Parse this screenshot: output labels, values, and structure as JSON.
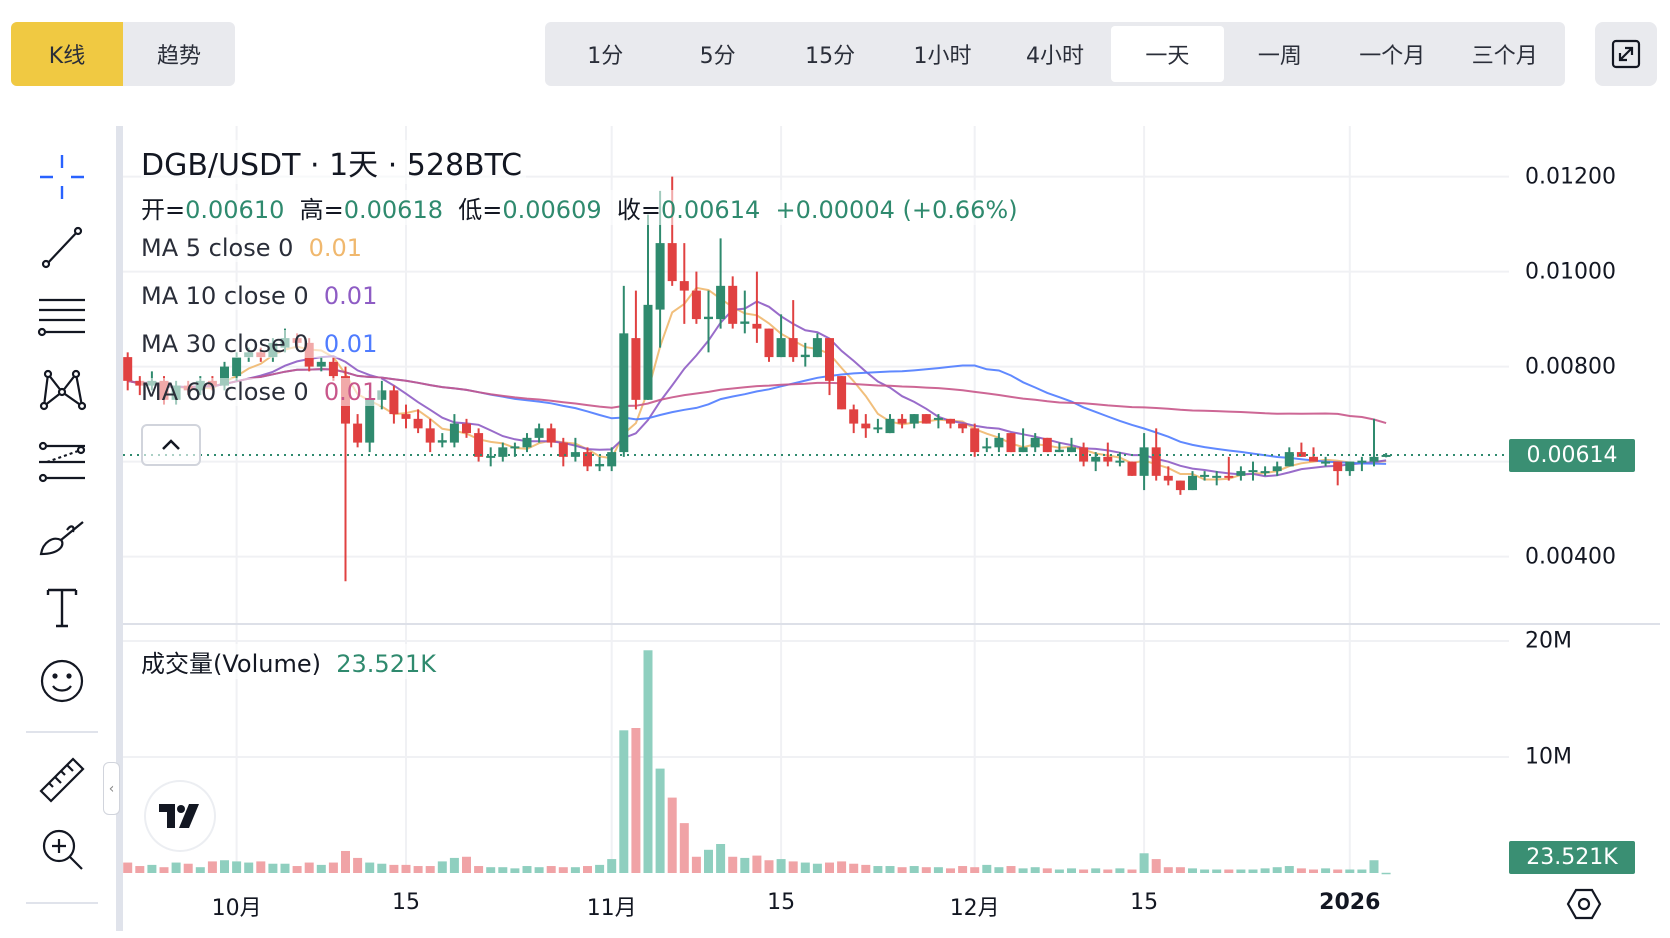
{
  "chart_type_tabs": [
    {
      "label": "K线",
      "active": true
    },
    {
      "label": "趋势",
      "active": false
    }
  ],
  "intervals": [
    {
      "label": "1分",
      "active": false
    },
    {
      "label": "5分",
      "active": false
    },
    {
      "label": "15分",
      "active": false
    },
    {
      "label": "1小时",
      "active": false
    },
    {
      "label": "4小时",
      "active": false
    },
    {
      "label": "一天",
      "active": true
    },
    {
      "label": "一周",
      "active": false
    },
    {
      "label": "一个月",
      "active": false
    },
    {
      "label": "三个月",
      "active": false
    }
  ],
  "toolbar": [
    "crosshair-icon",
    "trend-line-icon",
    "fib-retracement-icon",
    "xabcd-pattern-icon",
    "regression-lines-icon",
    "brush-icon",
    "text-icon",
    "emoji-icon",
    "ruler-icon",
    "zoom-in-icon"
  ],
  "legend": {
    "title": "DGB/USDT · 1天 · 528BTC",
    "open_label": "开=",
    "open": "0.00610",
    "high_label": "高=",
    "high": "0.00618",
    "low_label": "低=",
    "low": "0.00609",
    "close_label": "收=",
    "close": "0.00614",
    "change": "+0.00004 (+0.66%)",
    "ma": [
      {
        "label": "MA 5 close 0",
        "value": "0.01",
        "color": "#f0b86e"
      },
      {
        "label": "MA 10 close 0",
        "value": "0.01",
        "color": "#8e5cc4"
      },
      {
        "label": "MA 30 close 0",
        "value": "0.01",
        "color": "#4f7cff"
      },
      {
        "label": "MA 60 close 0",
        "value": "0.01",
        "color": "#c8568a"
      }
    ],
    "volume_label": "成交量(Volume)",
    "volume_value": "23.521K"
  },
  "colors": {
    "up": "#2f8a6e",
    "down": "#e04141",
    "up_vol": "#8fcfbf",
    "down_vol": "#f0a3a6",
    "accent": "#f0c942",
    "last_price_bg": "#3a8f73"
  },
  "chart_data": {
    "type": "candlestick",
    "symbol": "DGB/USDT",
    "interval": "1天",
    "price_axis": {
      "ticks": [
        "0.01200",
        "0.01000",
        "0.00800",
        "0.00400"
      ],
      "tick_values": [
        0.012,
        0.01,
        0.008,
        0.004
      ],
      "grid_values": [
        0.012,
        0.01,
        0.008,
        0.006,
        0.004
      ],
      "range": [
        0.00335,
        0.01248
      ]
    },
    "volume_axis": {
      "ticks": [
        "20M",
        "10M"
      ],
      "tick_values": [
        20,
        10
      ],
      "unit": "M"
    },
    "last_price": "0.00614",
    "last_price_value": 0.00614,
    "last_volume": "23.521K",
    "x_ticks": [
      {
        "label": "10月",
        "index": 9
      },
      {
        "label": "15",
        "index": 23
      },
      {
        "label": "11月",
        "index": 40
      },
      {
        "label": "15",
        "index": 54
      },
      {
        "label": "12月",
        "index": 70
      },
      {
        "label": "15",
        "index": 84
      },
      {
        "label": "2026",
        "index": 101,
        "bold": true
      }
    ],
    "ma_periods": [
      5,
      10,
      30,
      60
    ],
    "ohlc": [
      [
        0.0082,
        0.0083,
        0.0075,
        0.0077
      ],
      [
        0.0077,
        0.0078,
        0.0074,
        0.0076
      ],
      [
        0.0076,
        0.0079,
        0.0075,
        0.0077
      ],
      [
        0.0077,
        0.0078,
        0.0072,
        0.0073
      ],
      [
        0.0073,
        0.0077,
        0.0072,
        0.0076
      ],
      [
        0.0076,
        0.0077,
        0.0074,
        0.0075
      ],
      [
        0.0075,
        0.0078,
        0.0074,
        0.0077
      ],
      [
        0.0077,
        0.0078,
        0.0075,
        0.0076
      ],
      [
        0.0076,
        0.0081,
        0.0075,
        0.008
      ],
      [
        0.0078,
        0.0083,
        0.0077,
        0.0082
      ],
      [
        0.0082,
        0.0084,
        0.0081,
        0.0083
      ],
      [
        0.0083,
        0.0084,
        0.0081,
        0.0082
      ],
      [
        0.0082,
        0.0086,
        0.0081,
        0.0085
      ],
      [
        0.0084,
        0.0088,
        0.0083,
        0.0086
      ],
      [
        0.0086,
        0.0087,
        0.0084,
        0.0085
      ],
      [
        0.0085,
        0.0086,
        0.0079,
        0.008
      ],
      [
        0.008,
        0.0082,
        0.0079,
        0.0081
      ],
      [
        0.0081,
        0.0082,
        0.0077,
        0.0078
      ],
      [
        0.0078,
        0.008,
        0.00348,
        0.0068
      ],
      [
        0.0068,
        0.007,
        0.0063,
        0.0064
      ],
      [
        0.0064,
        0.0075,
        0.0062,
        0.0073
      ],
      [
        0.0073,
        0.0077,
        0.0071,
        0.0075
      ],
      [
        0.0075,
        0.0076,
        0.0068,
        0.007
      ],
      [
        0.007,
        0.0072,
        0.0067,
        0.0069
      ],
      [
        0.0069,
        0.0071,
        0.0066,
        0.0067
      ],
      [
        0.0067,
        0.0069,
        0.0062,
        0.0064
      ],
      [
        0.0064,
        0.0066,
        0.0063,
        0.00645
      ],
      [
        0.0064,
        0.007,
        0.0063,
        0.0068
      ],
      [
        0.0068,
        0.0069,
        0.0065,
        0.0066
      ],
      [
        0.0066,
        0.0067,
        0.006,
        0.0061
      ],
      [
        0.0061,
        0.0063,
        0.0059,
        0.00612
      ],
      [
        0.0061,
        0.0064,
        0.006,
        0.0063
      ],
      [
        0.0063,
        0.0064,
        0.0061,
        0.00632
      ],
      [
        0.0063,
        0.0066,
        0.0062,
        0.0065
      ],
      [
        0.0065,
        0.0068,
        0.0064,
        0.0067
      ],
      [
        0.0067,
        0.0068,
        0.0063,
        0.0064
      ],
      [
        0.0064,
        0.0065,
        0.0059,
        0.0061
      ],
      [
        0.0061,
        0.0065,
        0.006,
        0.0062
      ],
      [
        0.0062,
        0.0063,
        0.0058,
        0.0059
      ],
      [
        0.0059,
        0.0061,
        0.0058,
        0.00595
      ],
      [
        0.0059,
        0.0063,
        0.0058,
        0.0062
      ],
      [
        0.0062,
        0.0097,
        0.0061,
        0.0087
      ],
      [
        0.0086,
        0.0096,
        0.0071,
        0.0073
      ],
      [
        0.0073,
        0.0112,
        0.0073,
        0.0093
      ],
      [
        0.0092,
        0.0117,
        0.0084,
        0.0106
      ],
      [
        0.0106,
        0.012,
        0.0097,
        0.0098
      ],
      [
        0.0098,
        0.0106,
        0.0089,
        0.0096
      ],
      [
        0.0096,
        0.01,
        0.0089,
        0.009
      ],
      [
        0.009,
        0.0096,
        0.0083,
        0.00905
      ],
      [
        0.009,
        0.0107,
        0.0088,
        0.0097
      ],
      [
        0.0097,
        0.0099,
        0.0088,
        0.0089
      ],
      [
        0.0089,
        0.0096,
        0.0087,
        0.00895
      ],
      [
        0.0089,
        0.01,
        0.0085,
        0.0088
      ],
      [
        0.0088,
        0.0088,
        0.0081,
        0.0082
      ],
      [
        0.0082,
        0.0091,
        0.0082,
        0.0086
      ],
      [
        0.0086,
        0.0094,
        0.0081,
        0.0082
      ],
      [
        0.0082,
        0.0085,
        0.008,
        0.00825
      ],
      [
        0.0082,
        0.0087,
        0.0082,
        0.0086
      ],
      [
        0.0086,
        0.0086,
        0.0074,
        0.0077
      ],
      [
        0.0078,
        0.0078,
        0.0071,
        0.0071
      ],
      [
        0.0071,
        0.0072,
        0.0066,
        0.0068
      ],
      [
        0.0068,
        0.007,
        0.0065,
        0.0067
      ],
      [
        0.0067,
        0.0069,
        0.0066,
        0.00672
      ],
      [
        0.0066,
        0.007,
        0.0066,
        0.0069
      ],
      [
        0.0069,
        0.007,
        0.0067,
        0.0068
      ],
      [
        0.0068,
        0.007,
        0.0067,
        0.007
      ],
      [
        0.007,
        0.007,
        0.0068,
        0.0068
      ],
      [
        0.0069,
        0.007,
        0.0067,
        0.00692
      ],
      [
        0.0069,
        0.0069,
        0.0067,
        0.0068
      ],
      [
        0.0068,
        0.0068,
        0.0066,
        0.0067
      ],
      [
        0.0067,
        0.0068,
        0.0061,
        0.0062
      ],
      [
        0.0063,
        0.0065,
        0.0062,
        0.00632
      ],
      [
        0.0063,
        0.0066,
        0.0062,
        0.0065
      ],
      [
        0.0066,
        0.0066,
        0.0062,
        0.0062
      ],
      [
        0.0062,
        0.0067,
        0.0062,
        0.0063
      ],
      [
        0.0063,
        0.0066,
        0.0062,
        0.0065
      ],
      [
        0.0065,
        0.0065,
        0.0062,
        0.0062
      ],
      [
        0.0062,
        0.0064,
        0.0062,
        0.00625
      ],
      [
        0.0062,
        0.0065,
        0.0062,
        0.0063
      ],
      [
        0.0063,
        0.0064,
        0.0059,
        0.006
      ],
      [
        0.006,
        0.0062,
        0.0058,
        0.0061
      ],
      [
        0.0061,
        0.0064,
        0.0059,
        0.006
      ],
      [
        0.006,
        0.0062,
        0.0059,
        0.00602
      ],
      [
        0.006,
        0.006,
        0.0057,
        0.0057
      ],
      [
        0.0057,
        0.0066,
        0.0054,
        0.0063
      ],
      [
        0.0063,
        0.0067,
        0.0056,
        0.0057
      ],
      [
        0.0057,
        0.0059,
        0.0055,
        0.0056
      ],
      [
        0.0056,
        0.0056,
        0.0053,
        0.0054
      ],
      [
        0.0054,
        0.0058,
        0.0054,
        0.0057
      ],
      [
        0.0057,
        0.0058,
        0.0056,
        0.00572
      ],
      [
        0.0057,
        0.0058,
        0.0055,
        0.0057
      ],
      [
        0.0057,
        0.0061,
        0.0056,
        0.00568
      ],
      [
        0.0057,
        0.0059,
        0.0056,
        0.0058
      ],
      [
        0.0058,
        0.006,
        0.0056,
        0.00582
      ],
      [
        0.0058,
        0.0059,
        0.0057,
        0.0058
      ],
      [
        0.0058,
        0.006,
        0.0057,
        0.0059
      ],
      [
        0.0059,
        0.0063,
        0.0059,
        0.0062
      ],
      [
        0.0062,
        0.0064,
        0.0061,
        0.0061
      ],
      [
        0.0061,
        0.0063,
        0.006,
        0.006
      ],
      [
        0.006,
        0.0061,
        0.0059,
        0.006
      ],
      [
        0.006,
        0.006,
        0.0055,
        0.0058
      ],
      [
        0.0058,
        0.006,
        0.0057,
        0.006
      ],
      [
        0.006,
        0.0061,
        0.0058,
        0.00602
      ],
      [
        0.006,
        0.0069,
        0.0059,
        0.0061
      ],
      [
        0.0061,
        0.00618,
        0.00609,
        0.00614
      ]
    ],
    "volume_millions": [
      0.9,
      0.6,
      0.7,
      0.5,
      0.9,
      0.8,
      0.5,
      1.0,
      1.1,
      1.0,
      0.9,
      1.0,
      0.8,
      0.8,
      0.6,
      0.9,
      0.7,
      0.9,
      1.9,
      1.3,
      0.9,
      0.8,
      0.7,
      0.7,
      0.6,
      0.6,
      1.0,
      1.3,
      1.4,
      0.6,
      0.5,
      0.5,
      0.4,
      0.6,
      0.5,
      0.6,
      0.5,
      0.5,
      0.6,
      0.7,
      1.2,
      12.3,
      12.5,
      19.2,
      9.0,
      6.5,
      4.3,
      1.4,
      2.0,
      2.5,
      1.4,
      1.3,
      1.5,
      1.1,
      1.2,
      1.0,
      0.9,
      0.8,
      0.9,
      1.0,
      0.8,
      0.7,
      0.6,
      0.6,
      0.5,
      0.6,
      0.5,
      0.5,
      0.4,
      0.6,
      0.5,
      0.7,
      0.5,
      0.6,
      0.4,
      0.5,
      0.4,
      0.3,
      0.4,
      0.3,
      0.4,
      0.3,
      0.4,
      0.3,
      1.7,
      1.2,
      0.5,
      0.5,
      0.4,
      0.3,
      0.3,
      0.3,
      0.3,
      0.3,
      0.4,
      0.5,
      0.6,
      0.4,
      0.3,
      0.4,
      0.3,
      0.3,
      0.3,
      1.1,
      0.02
    ]
  }
}
